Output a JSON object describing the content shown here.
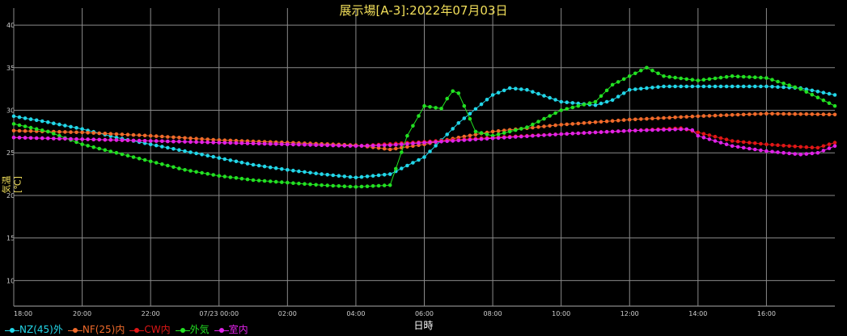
{
  "title": "展示場[A-3]:2022年07月03日",
  "chart_data": {
    "type": "line",
    "title": "展示場[A-3]:2022年07月03日",
    "xlabel": "日時",
    "ylabel": "気温[℃]",
    "ylim": [
      7,
      42
    ],
    "yticks": [
      10,
      15,
      20,
      25,
      30,
      35,
      40
    ],
    "xticks": [
      "18:00",
      "20:00",
      "22:00",
      "07/23 00:00",
      "02:00",
      "04:00",
      "06:00",
      "08:00",
      "10:00",
      "12:00",
      "14:00",
      "16:00"
    ],
    "xrange_hours": [
      0,
      24
    ],
    "grid": true,
    "legend_position": "bottom-left",
    "series": [
      {
        "name": "NZ(45)外",
        "color": "#22d6e8",
        "points": [
          [
            0,
            29.3
          ],
          [
            1,
            28.6
          ],
          [
            2,
            27.8
          ],
          [
            3,
            26.8
          ],
          [
            4,
            26.0
          ],
          [
            5,
            25.2
          ],
          [
            6,
            24.4
          ],
          [
            7,
            23.6
          ],
          [
            8,
            23.0
          ],
          [
            9,
            22.5
          ],
          [
            10,
            22.1
          ],
          [
            11,
            22.5
          ],
          [
            12,
            24.5
          ],
          [
            13,
            28.5
          ],
          [
            14,
            31.8
          ],
          [
            14.5,
            32.6
          ],
          [
            15,
            32.4
          ],
          [
            16,
            31.0
          ],
          [
            17,
            30.6
          ],
          [
            17.5,
            31.2
          ],
          [
            18,
            32.4
          ],
          [
            19,
            32.8
          ],
          [
            20,
            32.8
          ],
          [
            21,
            32.8
          ],
          [
            22,
            32.8
          ],
          [
            23,
            32.6
          ],
          [
            24,
            31.8
          ]
        ]
      },
      {
        "name": "NF(25)内",
        "color": "#f06a2a",
        "points": [
          [
            0,
            27.6
          ],
          [
            2,
            27.4
          ],
          [
            4,
            27.0
          ],
          [
            6,
            26.5
          ],
          [
            8,
            26.2
          ],
          [
            10,
            25.9
          ],
          [
            11,
            25.4
          ],
          [
            12,
            26.0
          ],
          [
            13,
            26.8
          ],
          [
            14,
            27.5
          ],
          [
            16,
            28.3
          ],
          [
            18,
            28.9
          ],
          [
            20,
            29.3
          ],
          [
            22,
            29.6
          ],
          [
            24,
            29.5
          ]
        ]
      },
      {
        "name": "CW内",
        "color": "#e01616",
        "points": [
          [
            0,
            26.8
          ],
          [
            2,
            26.6
          ],
          [
            4,
            26.4
          ],
          [
            6,
            26.2
          ],
          [
            8,
            26.0
          ],
          [
            10,
            25.8
          ],
          [
            12,
            26.3
          ],
          [
            14,
            26.8
          ],
          [
            16,
            27.2
          ],
          [
            18,
            27.6
          ],
          [
            19.5,
            27.9
          ],
          [
            20,
            27.4
          ],
          [
            21,
            26.4
          ],
          [
            22,
            26.0
          ],
          [
            23,
            25.7
          ],
          [
            23.5,
            25.6
          ],
          [
            24,
            26.2
          ]
        ]
      },
      {
        "name": "外気",
        "color": "#22e022",
        "points": [
          [
            0,
            28.4
          ],
          [
            1,
            27.5
          ],
          [
            2,
            26.0
          ],
          [
            3,
            25.0
          ],
          [
            4,
            24.0
          ],
          [
            5,
            23.0
          ],
          [
            6,
            22.3
          ],
          [
            7,
            21.8
          ],
          [
            8,
            21.5
          ],
          [
            9,
            21.2
          ],
          [
            10,
            21.0
          ],
          [
            11,
            21.2
          ],
          [
            11.5,
            27.0
          ],
          [
            12,
            30.5
          ],
          [
            12.5,
            30.2
          ],
          [
            12.8,
            32.3
          ],
          [
            13,
            32.0
          ],
          [
            13.5,
            27.5
          ],
          [
            14,
            27.0
          ],
          [
            15,
            28.0
          ],
          [
            16,
            30.0
          ],
          [
            17,
            31.0
          ],
          [
            17.5,
            33.0
          ],
          [
            18,
            34.0
          ],
          [
            18.5,
            35.0
          ],
          [
            19,
            34.0
          ],
          [
            20,
            33.5
          ],
          [
            21,
            34.0
          ],
          [
            22,
            33.8
          ],
          [
            23,
            32.5
          ],
          [
            24,
            30.5
          ]
        ]
      },
      {
        "name": "室内",
        "color": "#e022e8",
        "points": [
          [
            0,
            26.8
          ],
          [
            2,
            26.6
          ],
          [
            4,
            26.4
          ],
          [
            6,
            26.2
          ],
          [
            8,
            26.0
          ],
          [
            10,
            25.8
          ],
          [
            11,
            25.9
          ],
          [
            12,
            26.2
          ],
          [
            14,
            26.7
          ],
          [
            16,
            27.2
          ],
          [
            18,
            27.6
          ],
          [
            19.8,
            27.8
          ],
          [
            20,
            27.0
          ],
          [
            21,
            25.8
          ],
          [
            22,
            25.2
          ],
          [
            23,
            24.8
          ],
          [
            23.5,
            25.0
          ],
          [
            24,
            25.8
          ]
        ]
      }
    ]
  }
}
